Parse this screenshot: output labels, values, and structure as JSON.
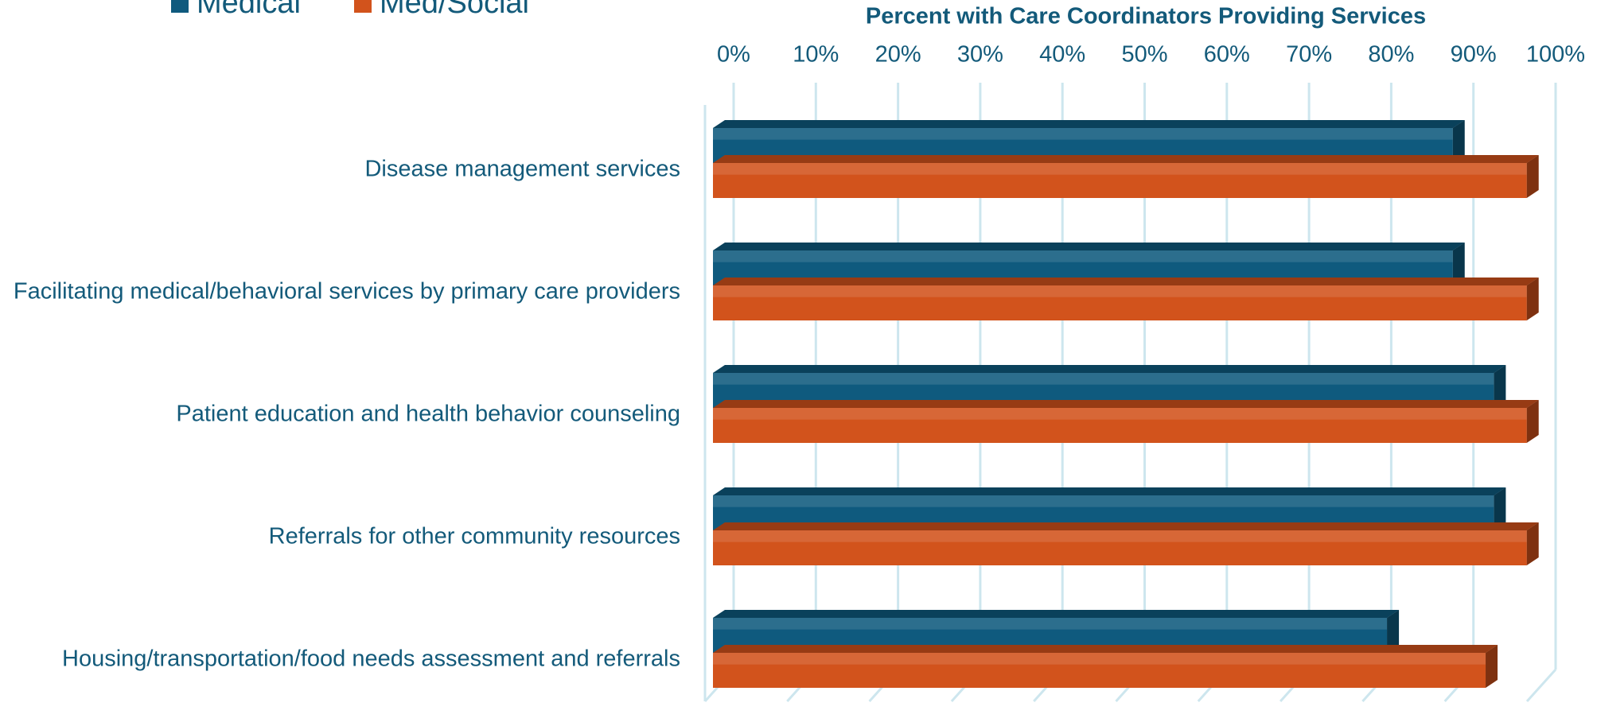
{
  "chart_data": {
    "type": "bar3d-horizontal",
    "title": "Percent with Care Coordinators Providing Services",
    "categories": [
      "Disease management services",
      "Facilitating medical/behavioral services by primary care providers",
      "Patient education and health behavior counseling",
      "Referrals for other community resources",
      "Housing/transportation/food needs assessment and referrals"
    ],
    "series": [
      {
        "name": "Medical",
        "color": "#0f5a7e",
        "values": [
          90,
          90,
          95,
          95,
          82
        ]
      },
      {
        "name": "Med/Social",
        "color": "#d2531c",
        "values": [
          99,
          99,
          99,
          99,
          94
        ]
      }
    ],
    "xlim": [
      0,
      100
    ],
    "xticks": [
      {
        "value": 0,
        "label": "0%"
      },
      {
        "value": 10,
        "label": "10%"
      },
      {
        "value": 20,
        "label": "20%"
      },
      {
        "value": 30,
        "label": "30%"
      },
      {
        "value": 40,
        "label": "40%"
      },
      {
        "value": 50,
        "label": "50%"
      },
      {
        "value": 60,
        "label": "60%"
      },
      {
        "value": 70,
        "label": "70%"
      },
      {
        "value": 80,
        "label": "80%"
      },
      {
        "value": 90,
        "label": "90%"
      },
      {
        "value": 100,
        "label": "100%"
      }
    ],
    "grid": true,
    "legend": "top-left"
  }
}
